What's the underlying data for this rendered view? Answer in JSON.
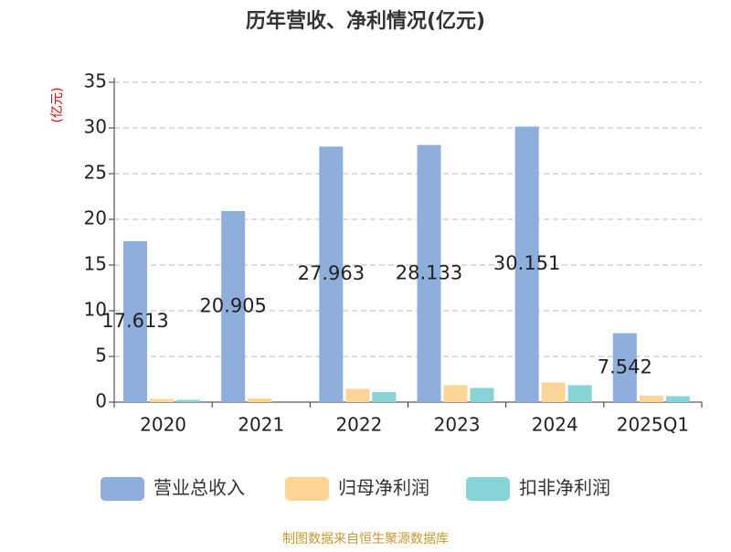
{
  "chart_data": {
    "type": "bar",
    "title": "历年营收、净利情况(亿元)",
    "y_label": "(亿元)",
    "source": "制图数据来自恒生聚源数据库",
    "categories": [
      "2020",
      "2021",
      "2022",
      "2023",
      "2024",
      "2025Q1"
    ],
    "series": [
      {
        "name": "营业总收入",
        "color": "#8eaedb",
        "values": [
          17.613,
          20.905,
          27.963,
          28.133,
          30.151,
          7.542
        ],
        "labels": true
      },
      {
        "name": "归母净利润",
        "color": "#fdd697",
        "values": [
          0.35,
          0.4,
          1.45,
          1.85,
          2.15,
          0.7
        ]
      },
      {
        "name": "扣非净利润",
        "color": "#86d4d6",
        "values": [
          0.25,
          0,
          1.1,
          1.55,
          1.85,
          0.65
        ]
      }
    ],
    "ylim": [
      0,
      35
    ],
    "yticks": [
      0,
      5,
      10,
      15,
      20,
      25,
      30,
      35
    ],
    "grid": true
  }
}
